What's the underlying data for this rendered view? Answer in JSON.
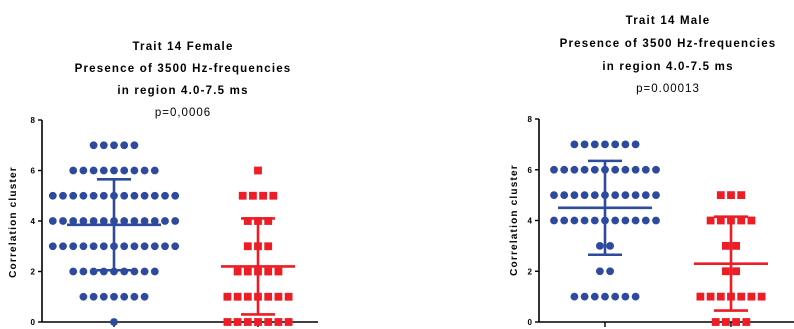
{
  "colors": {
    "female_or_blue": "#2e4a9e",
    "red": "#ee1c25",
    "axis": "#000000"
  },
  "chart_data": [
    {
      "type": "scatter",
      "title": [
        "Trait 14 Female",
        "Presence of 3500 Hz-frequencies",
        "in region 4.0-7.5 ms"
      ],
      "subtitle": "p=0,0006",
      "ylabel": "Correlation cluster",
      "ylim": [
        0,
        8
      ],
      "yticks": [
        "0",
        "2",
        "4",
        "6",
        "8"
      ],
      "series": [
        {
          "marker": "circle",
          "color": "#2e4a9e",
          "counts": {
            "0": 1,
            "1": 7,
            "2": 9,
            "3": 13,
            "4": 13,
            "5": 13,
            "6": 9,
            "7": 5
          },
          "mean": 3.85,
          "sd_low": 2.05,
          "sd_high": 5.65
        },
        {
          "marker": "square",
          "color": "#ee1c25",
          "counts": {
            "0": 7,
            "1": 7,
            "2": 5,
            "3": 3,
            "4": 3,
            "5": 4,
            "6": 1
          },
          "mean": 2.2,
          "sd_low": 0.3,
          "sd_high": 4.1
        }
      ]
    },
    {
      "type": "scatter",
      "title": [
        "Trait 14 Male",
        "Presence of 3500 Hz-frequencies",
        "in region 4.0-7.5 ms"
      ],
      "subtitle": "p=0.00013",
      "ylabel": "Correlation cluster",
      "ylim": [
        0,
        8
      ],
      "yticks": [
        "0",
        "2",
        "4",
        "6",
        "8"
      ],
      "series": [
        {
          "marker": "circle",
          "color": "#2e4a9e",
          "counts": {
            "1": 7,
            "2": 2,
            "3": 2,
            "4": 11,
            "5": 11,
            "6": 11,
            "7": 7
          },
          "mean": 4.5,
          "sd_low": 2.65,
          "sd_high": 6.35
        },
        {
          "marker": "square",
          "color": "#ee1c25",
          "counts": {
            "0": 4,
            "1": 7,
            "2": 2,
            "3": 2,
            "4": 5,
            "5": 3
          },
          "mean": 2.3,
          "sd_low": 0.45,
          "sd_high": 4.15
        }
      ]
    }
  ]
}
